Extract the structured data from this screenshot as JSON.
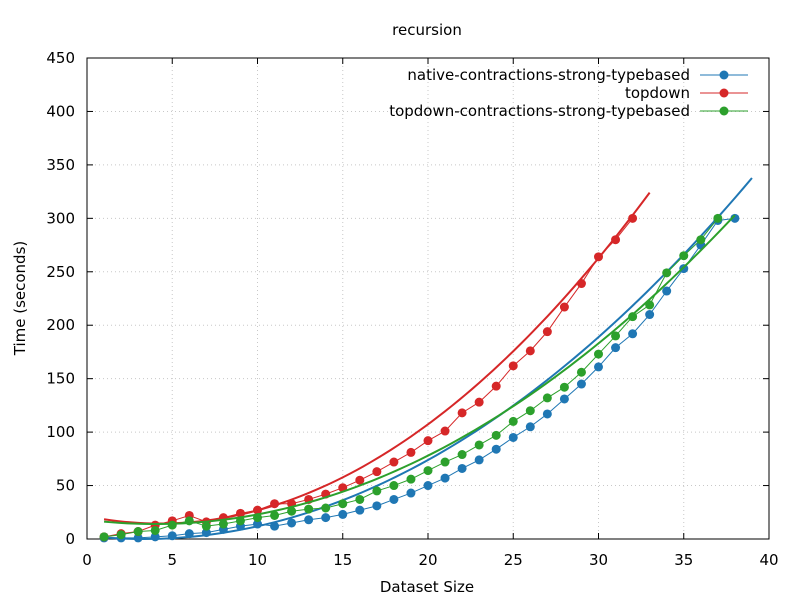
{
  "chart_data": {
    "type": "scatter",
    "title": "recursion",
    "xlabel": "Dataset Size",
    "ylabel": "Time (seconds)",
    "xlim": [
      0,
      40
    ],
    "ylim": [
      0,
      450
    ],
    "xticks": [
      0,
      5,
      10,
      15,
      20,
      25,
      30,
      35,
      40
    ],
    "yticks": [
      0,
      50,
      100,
      150,
      200,
      250,
      300,
      350,
      400,
      450
    ],
    "grid": true,
    "legend": "top-right",
    "series": [
      {
        "name": "native-contractions-strong-typebased",
        "color": "#1f77b4",
        "x": [
          1,
          2,
          3,
          4,
          5,
          6,
          7,
          8,
          9,
          10,
          11,
          12,
          13,
          14,
          15,
          16,
          17,
          18,
          19,
          20,
          21,
          22,
          23,
          24,
          25,
          26,
          27,
          28,
          29,
          30,
          31,
          32,
          33,
          34,
          35,
          36,
          37,
          38
        ],
        "y": [
          1,
          1,
          1,
          2,
          3,
          5,
          6,
          9,
          12,
          14,
          12,
          15,
          18,
          20,
          23,
          27,
          31,
          37,
          43,
          50,
          57,
          66,
          74,
          84,
          95,
          105,
          117,
          131,
          145,
          161,
          179,
          192,
          210,
          232,
          253,
          275,
          298,
          300
        ],
        "fit": [
          0.265,
          -1.75,
          2.9
        ]
      },
      {
        "name": "topdown",
        "color": "#d62728",
        "x": [
          1,
          2,
          3,
          4,
          5,
          6,
          7,
          8,
          9,
          10,
          11,
          12,
          13,
          14,
          15,
          16,
          17,
          18,
          19,
          20,
          21,
          22,
          23,
          24,
          25,
          26,
          27,
          28,
          29,
          30,
          31,
          32
        ],
        "y": [
          2,
          5,
          7,
          13,
          17,
          22,
          16,
          20,
          24,
          27,
          33,
          33,
          37,
          42,
          48,
          55,
          63,
          72,
          81,
          92,
          101,
          118,
          128,
          143,
          162,
          176,
          194,
          217,
          239,
          264,
          280,
          300
        ],
        "fit": [
          0.375,
          -3.2,
          21.3
        ]
      },
      {
        "name": "topdown-contractions-strong-typebased",
        "color": "#2ca02c",
        "x": [
          1,
          2,
          3,
          4,
          5,
          6,
          7,
          8,
          9,
          10,
          11,
          12,
          13,
          14,
          15,
          16,
          17,
          18,
          19,
          20,
          21,
          22,
          23,
          24,
          25,
          26,
          27,
          28,
          29,
          30,
          31,
          32,
          33,
          34,
          35,
          36,
          37
        ],
        "y": [
          2,
          4,
          7,
          8,
          13,
          17,
          12,
          14,
          17,
          20,
          22,
          26,
          28,
          29,
          33,
          37,
          45,
          50,
          56,
          64,
          72,
          79,
          88,
          97,
          110,
          120,
          132,
          142,
          156,
          173,
          190,
          208,
          219,
          249,
          265,
          280,
          300
        ],
        "fit": [
          0.25,
          -2.0,
          18.0
        ]
      }
    ]
  }
}
